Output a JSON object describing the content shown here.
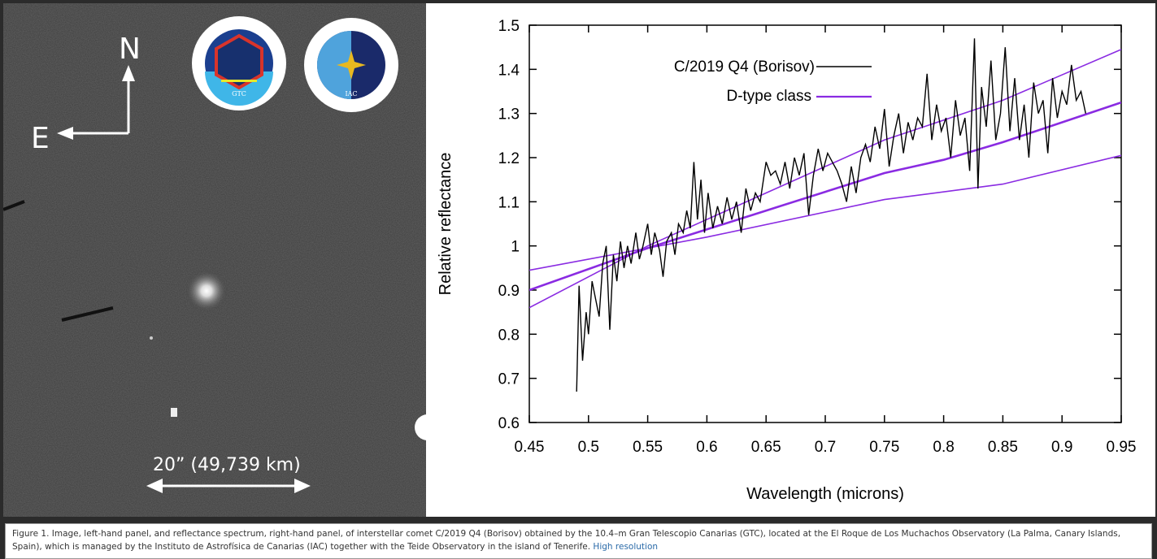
{
  "image_panel": {
    "north_label": "N",
    "east_label": "E",
    "scale_label": "20” (49,739 km)",
    "logos": [
      {
        "name": "GRAN TELESCOPIO CANARIAS",
        "short": "GTC",
        "colors": [
          "#1b3f8f",
          "#d9342b",
          "#e8e82a"
        ]
      },
      {
        "name": "INSTITUTO DE ASTROFISICA DE CANARIAS",
        "short": "IAC",
        "colors": [
          "#1a2a6a",
          "#4fa3dc",
          "#e8b820"
        ]
      }
    ]
  },
  "caption": {
    "text": "Figure 1. Image, left-hand panel, and reflectance spectrum, right-hand panel, of interstellar comet C/2019 Q4 (Borisov) obtained by the 10.4–m Gran Telescopio Canarias (GTC), located at the El Roque de Los Muchachos Observatory (La Palma, Canary Islands, Spain), which is managed by the Instituto de Astrofísica de Canarias (IAC) together with the Teide Observatory in the island of Tenerife.",
    "link": "High resolution",
    "link_color": "#2a6aa8"
  },
  "chart_data": {
    "type": "line",
    "xlabel": "Wavelength (microns)",
    "ylabel": "Relative reflectance",
    "xlim": [
      0.45,
      0.95
    ],
    "ylim": [
      0.6,
      1.5
    ],
    "xticks": [
      "0.45",
      "0.5",
      "0.55",
      "0.6",
      "0.65",
      "0.7",
      "0.75",
      "0.8",
      "0.85",
      "0.9",
      "0.95"
    ],
    "yticks": [
      "0.6",
      "0.7",
      "0.8",
      "0.9",
      "1",
      "1.1",
      "1.2",
      "1.3",
      "1.4",
      "1.5"
    ],
    "grid": false,
    "legend_position": "top-left",
    "series": [
      {
        "name": "C/2019 Q4 (Borisov)",
        "color": "#000000",
        "x": [
          0.49,
          0.492,
          0.495,
          0.498,
          0.5,
          0.503,
          0.506,
          0.509,
          0.512,
          0.515,
          0.518,
          0.521,
          0.524,
          0.527,
          0.53,
          0.533,
          0.536,
          0.54,
          0.543,
          0.546,
          0.55,
          0.553,
          0.556,
          0.56,
          0.563,
          0.566,
          0.57,
          0.573,
          0.576,
          0.58,
          0.583,
          0.586,
          0.589,
          0.592,
          0.595,
          0.598,
          0.601,
          0.605,
          0.609,
          0.613,
          0.617,
          0.621,
          0.625,
          0.629,
          0.633,
          0.637,
          0.641,
          0.645,
          0.65,
          0.654,
          0.658,
          0.662,
          0.666,
          0.67,
          0.674,
          0.678,
          0.682,
          0.686,
          0.69,
          0.694,
          0.698,
          0.702,
          0.706,
          0.71,
          0.714,
          0.718,
          0.722,
          0.726,
          0.73,
          0.734,
          0.738,
          0.742,
          0.746,
          0.75,
          0.754,
          0.758,
          0.762,
          0.766,
          0.77,
          0.774,
          0.778,
          0.782,
          0.786,
          0.79,
          0.794,
          0.798,
          0.802,
          0.806,
          0.81,
          0.814,
          0.818,
          0.822,
          0.826,
          0.829,
          0.832,
          0.836,
          0.84,
          0.844,
          0.848,
          0.852,
          0.856,
          0.86,
          0.864,
          0.868,
          0.872,
          0.876,
          0.88,
          0.884,
          0.888,
          0.892,
          0.896,
          0.9,
          0.904,
          0.908,
          0.912,
          0.916,
          0.92
        ],
        "y": [
          0.67,
          0.91,
          0.74,
          0.85,
          0.8,
          0.92,
          0.88,
          0.84,
          0.96,
          1.0,
          0.81,
          0.98,
          0.92,
          1.01,
          0.95,
          1.0,
          0.96,
          1.03,
          0.97,
          1.0,
          1.05,
          0.98,
          1.03,
          0.99,
          0.93,
          1.01,
          1.03,
          0.98,
          1.05,
          1.03,
          1.08,
          1.04,
          1.19,
          1.06,
          1.15,
          1.03,
          1.12,
          1.04,
          1.09,
          1.05,
          1.11,
          1.06,
          1.1,
          1.03,
          1.13,
          1.08,
          1.12,
          1.1,
          1.19,
          1.16,
          1.17,
          1.14,
          1.19,
          1.13,
          1.2,
          1.16,
          1.21,
          1.07,
          1.16,
          1.22,
          1.17,
          1.21,
          1.19,
          1.17,
          1.14,
          1.1,
          1.18,
          1.12,
          1.2,
          1.23,
          1.19,
          1.27,
          1.22,
          1.31,
          1.18,
          1.25,
          1.3,
          1.21,
          1.28,
          1.24,
          1.29,
          1.27,
          1.39,
          1.24,
          1.32,
          1.26,
          1.29,
          1.2,
          1.33,
          1.25,
          1.29,
          1.17,
          1.47,
          1.13,
          1.36,
          1.27,
          1.42,
          1.24,
          1.3,
          1.45,
          1.26,
          1.38,
          1.24,
          1.32,
          1.2,
          1.37,
          1.3,
          1.33,
          1.21,
          1.38,
          1.29,
          1.35,
          1.32,
          1.41,
          1.33,
          1.35,
          1.3
        ]
      },
      {
        "name": "D-type class",
        "color": "#8a2be2",
        "x": [
          0.45,
          0.55,
          0.65,
          0.75,
          0.8,
          0.85,
          0.95
        ],
        "y": [
          0.9,
          0.995,
          1.08,
          1.165,
          1.195,
          1.235,
          1.325
        ]
      },
      {
        "color": "#8a2be2",
        "x": [
          0.45,
          0.55,
          0.65,
          0.75,
          0.85,
          0.95
        ],
        "y": [
          0.86,
          1.0,
          1.12,
          1.24,
          1.33,
          1.445
        ]
      },
      {
        "color": "#8a2be2",
        "x": [
          0.45,
          0.55,
          0.6,
          0.75,
          0.85,
          0.95
        ],
        "y": [
          0.945,
          0.995,
          1.02,
          1.105,
          1.14,
          1.205
        ]
      }
    ]
  }
}
